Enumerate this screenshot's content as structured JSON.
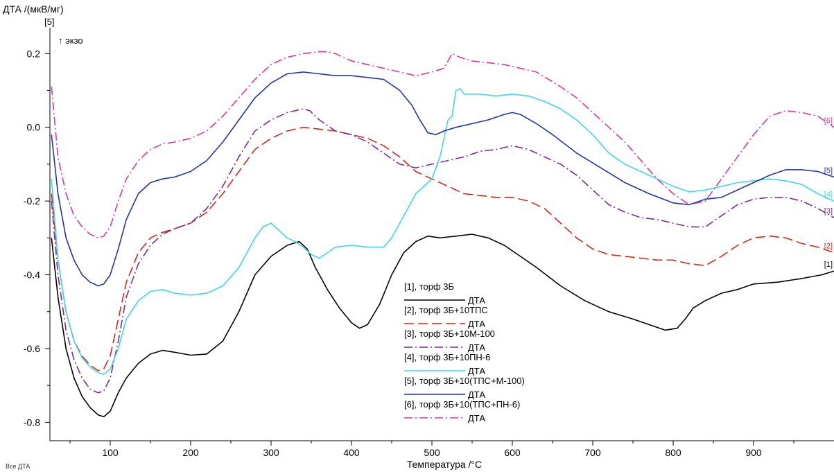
{
  "chart_data": {
    "type": "line",
    "ylabel": "ДТА /(мкВ/мг)",
    "ylabel_series_tag": "[5]",
    "exo_label": "↑ экзо",
    "xlabel": "Температура /°C",
    "xlim": [
      25,
      1000
    ],
    "ylim": [
      -0.85,
      0.27
    ],
    "x_ticks": [
      "100",
      "200",
      "300",
      "400",
      "500",
      "600",
      "700",
      "800",
      "900"
    ],
    "x_tick_values": [
      100,
      200,
      300,
      400,
      500,
      600,
      700,
      800,
      900
    ],
    "y_ticks": [
      "0.2",
      "0.0",
      "-0.2",
      "-0.4",
      "-0.6",
      "-0.8"
    ],
    "y_tick_values": [
      0.2,
      0.0,
      -0.2,
      -0.4,
      -0.6,
      -0.8
    ],
    "grid": false,
    "legend_position": "center-bottom",
    "legend_sub_label": "ДТА",
    "series": [
      {
        "name": "[1], торф 3Б",
        "end_tag": "[1]",
        "color": "#000000",
        "dash": "solid",
        "x": [
          27,
          35,
          45,
          55,
          65,
          75,
          85,
          92,
          100,
          110,
          120,
          135,
          150,
          165,
          180,
          200,
          220,
          240,
          260,
          280,
          300,
          320,
          335,
          345,
          355,
          370,
          385,
          400,
          410,
          420,
          435,
          450,
          465,
          480,
          495,
          510,
          530,
          550,
          570,
          590,
          610,
          630,
          660,
          690,
          720,
          750,
          770,
          790,
          805,
          815,
          825,
          840,
          860,
          880,
          900,
          930,
          960,
          985,
          1000
        ],
        "y": [
          -0.3,
          -0.46,
          -0.6,
          -0.68,
          -0.73,
          -0.76,
          -0.78,
          -0.785,
          -0.77,
          -0.72,
          -0.68,
          -0.64,
          -0.615,
          -0.605,
          -0.61,
          -0.618,
          -0.615,
          -0.58,
          -0.5,
          -0.4,
          -0.35,
          -0.32,
          -0.31,
          -0.33,
          -0.38,
          -0.44,
          -0.49,
          -0.53,
          -0.545,
          -0.535,
          -0.48,
          -0.4,
          -0.34,
          -0.31,
          -0.295,
          -0.3,
          -0.295,
          -0.29,
          -0.3,
          -0.32,
          -0.35,
          -0.38,
          -0.43,
          -0.47,
          -0.5,
          -0.52,
          -0.535,
          -0.55,
          -0.545,
          -0.52,
          -0.49,
          -0.47,
          -0.45,
          -0.44,
          -0.425,
          -0.42,
          -0.41,
          -0.4,
          -0.39
        ]
      },
      {
        "name": "[2], торф 3Б+10ТПС",
        "end_tag": "[2]",
        "color": "#cc2a1e",
        "dash": "long-dash",
        "x": [
          27,
          35,
          45,
          55,
          65,
          75,
          85,
          92,
          100,
          110,
          120,
          135,
          150,
          165,
          180,
          200,
          220,
          240,
          260,
          280,
          300,
          320,
          340,
          360,
          380,
          400,
          420,
          440,
          460,
          480,
          500,
          520,
          540,
          560,
          580,
          600,
          620,
          640,
          660,
          680,
          700,
          720,
          740,
          760,
          780,
          800,
          820,
          840,
          860,
          880,
          900,
          920,
          940,
          960,
          980,
          1000
        ],
        "y": [
          -0.18,
          -0.36,
          -0.5,
          -0.58,
          -0.62,
          -0.645,
          -0.66,
          -0.655,
          -0.62,
          -0.52,
          -0.42,
          -0.34,
          -0.3,
          -0.285,
          -0.275,
          -0.26,
          -0.23,
          -0.18,
          -0.12,
          -0.06,
          -0.03,
          -0.01,
          0.0,
          -0.005,
          -0.01,
          -0.02,
          -0.03,
          -0.05,
          -0.08,
          -0.12,
          -0.14,
          -0.16,
          -0.18,
          -0.185,
          -0.19,
          -0.19,
          -0.2,
          -0.22,
          -0.26,
          -0.3,
          -0.33,
          -0.345,
          -0.35,
          -0.355,
          -0.36,
          -0.36,
          -0.37,
          -0.375,
          -0.35,
          -0.32,
          -0.3,
          -0.295,
          -0.3,
          -0.315,
          -0.325,
          -0.34
        ]
      },
      {
        "name": "[3], торф 3Б+10М-100",
        "end_tag": "[3]",
        "color": "#7b2a8e",
        "dash": "dash-dot",
        "x": [
          27,
          35,
          45,
          55,
          65,
          75,
          85,
          92,
          100,
          110,
          120,
          135,
          150,
          165,
          180,
          200,
          220,
          240,
          260,
          280,
          300,
          320,
          340,
          348,
          360,
          380,
          400,
          420,
          440,
          460,
          480,
          500,
          520,
          540,
          560,
          580,
          600,
          620,
          640,
          660,
          680,
          700,
          720,
          740,
          760,
          780,
          800,
          820,
          840,
          860,
          880,
          900,
          920,
          940,
          960,
          980,
          1000
        ],
        "y": [
          -0.2,
          -0.4,
          -0.55,
          -0.63,
          -0.68,
          -0.71,
          -0.72,
          -0.715,
          -0.68,
          -0.58,
          -0.46,
          -0.37,
          -0.32,
          -0.29,
          -0.275,
          -0.26,
          -0.22,
          -0.16,
          -0.08,
          -0.01,
          0.02,
          0.04,
          0.05,
          0.045,
          0.02,
          -0.01,
          -0.02,
          -0.04,
          -0.07,
          -0.1,
          -0.11,
          -0.1,
          -0.09,
          -0.08,
          -0.065,
          -0.06,
          -0.05,
          -0.06,
          -0.08,
          -0.1,
          -0.13,
          -0.17,
          -0.21,
          -0.23,
          -0.245,
          -0.25,
          -0.26,
          -0.27,
          -0.27,
          -0.24,
          -0.21,
          -0.195,
          -0.19,
          -0.19,
          -0.2,
          -0.22,
          -0.245
        ]
      },
      {
        "name": "[4], торф 3Б+10ПН-6",
        "end_tag": "[4]",
        "color": "#3fd7e0",
        "dash": "solid",
        "x": [
          27,
          35,
          45,
          55,
          65,
          75,
          85,
          92,
          100,
          110,
          120,
          135,
          150,
          165,
          180,
          200,
          220,
          240,
          260,
          280,
          290,
          300,
          310,
          320,
          330,
          340,
          350,
          360,
          370,
          380,
          400,
          420,
          440,
          450,
          460,
          470,
          480,
          490,
          500,
          510,
          520,
          525,
          530,
          535,
          540,
          560,
          580,
          600,
          620,
          640,
          660,
          680,
          700,
          720,
          740,
          760,
          780,
          800,
          820,
          840,
          860,
          880,
          900,
          920,
          940,
          960,
          980,
          1000
        ],
        "y": [
          -0.14,
          -0.36,
          -0.5,
          -0.58,
          -0.625,
          -0.65,
          -0.665,
          -0.67,
          -0.655,
          -0.6,
          -0.52,
          -0.47,
          -0.445,
          -0.44,
          -0.45,
          -0.455,
          -0.45,
          -0.43,
          -0.38,
          -0.3,
          -0.27,
          -0.26,
          -0.28,
          -0.3,
          -0.31,
          -0.325,
          -0.345,
          -0.355,
          -0.34,
          -0.325,
          -0.32,
          -0.325,
          -0.325,
          -0.3,
          -0.26,
          -0.22,
          -0.18,
          -0.16,
          -0.14,
          -0.08,
          0.02,
          0.03,
          0.1,
          0.105,
          0.09,
          0.09,
          0.085,
          0.09,
          0.085,
          0.07,
          0.05,
          0.02,
          -0.02,
          -0.07,
          -0.1,
          -0.12,
          -0.14,
          -0.16,
          -0.175,
          -0.17,
          -0.16,
          -0.15,
          -0.145,
          -0.14,
          -0.145,
          -0.155,
          -0.18,
          -0.2
        ]
      },
      {
        "name": "[5], торф 3Б+10(ТПС+М-100)",
        "end_tag": "[5]",
        "color": "#2233a8",
        "dash": "solid",
        "x": [
          27,
          35,
          45,
          55,
          65,
          75,
          85,
          92,
          100,
          110,
          120,
          135,
          150,
          165,
          180,
          200,
          220,
          240,
          260,
          280,
          300,
          320,
          340,
          360,
          380,
          400,
          420,
          440,
          460,
          475,
          485,
          495,
          505,
          515,
          530,
          550,
          570,
          590,
          600,
          610,
          630,
          650,
          680,
          710,
          740,
          770,
          800,
          820,
          840,
          860,
          880,
          900,
          920,
          940,
          960,
          980,
          1000
        ],
        "y": [
          -0.02,
          -0.18,
          -0.3,
          -0.36,
          -0.4,
          -0.42,
          -0.43,
          -0.425,
          -0.4,
          -0.33,
          -0.25,
          -0.18,
          -0.15,
          -0.14,
          -0.135,
          -0.12,
          -0.09,
          -0.04,
          0.02,
          0.08,
          0.12,
          0.145,
          0.15,
          0.145,
          0.14,
          0.14,
          0.135,
          0.13,
          0.1,
          0.06,
          0.02,
          -0.015,
          -0.02,
          -0.01,
          0.0,
          0.01,
          0.02,
          0.035,
          0.04,
          0.035,
          0.01,
          -0.02,
          -0.07,
          -0.11,
          -0.15,
          -0.18,
          -0.205,
          -0.21,
          -0.195,
          -0.19,
          -0.17,
          -0.15,
          -0.13,
          -0.115,
          -0.115,
          -0.12,
          -0.135
        ]
      },
      {
        "name": "[6], торф 3Б+10(ТПС+ПН-6)",
        "end_tag": "[6]",
        "color": "#d43a9e",
        "dash": "dash-dot",
        "x": [
          27,
          35,
          45,
          55,
          65,
          75,
          85,
          92,
          100,
          110,
          120,
          135,
          150,
          165,
          180,
          200,
          220,
          240,
          260,
          280,
          300,
          320,
          340,
          360,
          370,
          380,
          400,
          420,
          440,
          460,
          480,
          500,
          515,
          525,
          535,
          550,
          570,
          590,
          610,
          630,
          660,
          680,
          700,
          720,
          740,
          760,
          780,
          800,
          820,
          840,
          860,
          880,
          900,
          920,
          940,
          960,
          980,
          1000
        ],
        "y": [
          0.11,
          -0.08,
          -0.18,
          -0.24,
          -0.27,
          -0.29,
          -0.3,
          -0.295,
          -0.27,
          -0.2,
          -0.14,
          -0.09,
          -0.06,
          -0.045,
          -0.04,
          -0.03,
          -0.01,
          0.03,
          0.08,
          0.13,
          0.17,
          0.19,
          0.2,
          0.205,
          0.205,
          0.2,
          0.18,
          0.17,
          0.16,
          0.15,
          0.14,
          0.15,
          0.16,
          0.2,
          0.19,
          0.18,
          0.175,
          0.17,
          0.16,
          0.15,
          0.11,
          0.08,
          0.04,
          0.0,
          -0.04,
          -0.09,
          -0.14,
          -0.18,
          -0.21,
          -0.2,
          -0.14,
          -0.08,
          -0.02,
          0.03,
          0.045,
          0.04,
          0.03,
          0.0
        ]
      }
    ]
  },
  "footer_label": "Все ДТА"
}
